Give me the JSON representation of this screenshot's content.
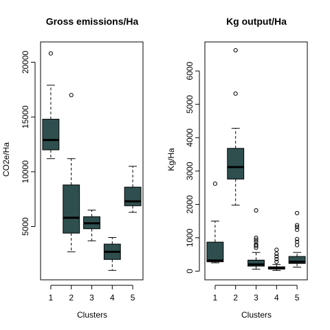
{
  "chart_data": [
    {
      "type": "box",
      "title": "Gross emissions/Ha",
      "xlabel": "Clusters",
      "ylabel": "CO2e/Ha",
      "ylim": [
        140,
        21850
      ],
      "yticks": [
        5000,
        10000,
        15000,
        20000
      ],
      "box_color": "#2f4f4f",
      "categories": [
        "1",
        "2",
        "3",
        "4",
        "5"
      ],
      "boxes": [
        {
          "whisker_low": 11200,
          "q1": 12000,
          "median": 12900,
          "q3": 14800,
          "whisker_high": 17900,
          "outliers": [
            20800
          ]
        },
        {
          "whisker_low": 2700,
          "q1": 4400,
          "median": 5800,
          "q3": 8800,
          "whisker_high": 11200,
          "outliers": [
            17000
          ]
        },
        {
          "whisker_low": 3700,
          "q1": 4800,
          "median": 5300,
          "q3": 5900,
          "whisker_high": 6500,
          "outliers": []
        },
        {
          "whisker_low": 1000,
          "q1": 2000,
          "median": 2700,
          "q3": 3400,
          "whisker_high": 4000,
          "outliers": []
        },
        {
          "whisker_low": 6300,
          "q1": 6900,
          "median": 7300,
          "q3": 8600,
          "whisker_high": 10500,
          "outliers": []
        }
      ]
    },
    {
      "type": "box",
      "title": "Kg output/Ha",
      "xlabel": "Clusters",
      "ylabel": "Kg/Ha",
      "ylim": [
        -260,
        6870
      ],
      "yticks": [
        0,
        1000,
        2000,
        3000,
        4000,
        5000,
        6000
      ],
      "box_color": "#2f4f4f",
      "categories": [
        "1",
        "2",
        "3",
        "4",
        "5"
      ],
      "boxes": [
        {
          "whisker_low": 250,
          "q1": 280,
          "median": 320,
          "q3": 870,
          "whisker_high": 1500,
          "outliers": [
            2620
          ]
        },
        {
          "whisker_low": 1980,
          "q1": 2760,
          "median": 3120,
          "q3": 3680,
          "whisker_high": 4280,
          "outliers": [
            5320,
            6620
          ]
        },
        {
          "whisker_low": 60,
          "q1": 150,
          "median": 200,
          "q3": 330,
          "whisker_high": 560,
          "outliers": [
            700,
            760,
            800,
            880,
            940,
            1000,
            1820
          ]
        },
        {
          "whisker_low": 20,
          "q1": 60,
          "median": 90,
          "q3": 130,
          "whisker_high": 200,
          "outliers": [
            280,
            360,
            440,
            520,
            640
          ]
        },
        {
          "whisker_low": 120,
          "q1": 230,
          "median": 280,
          "q3": 440,
          "whisker_high": 560,
          "outliers": [
            780,
            880,
            960,
            1240,
            1320,
            1380,
            1740
          ]
        }
      ]
    }
  ]
}
